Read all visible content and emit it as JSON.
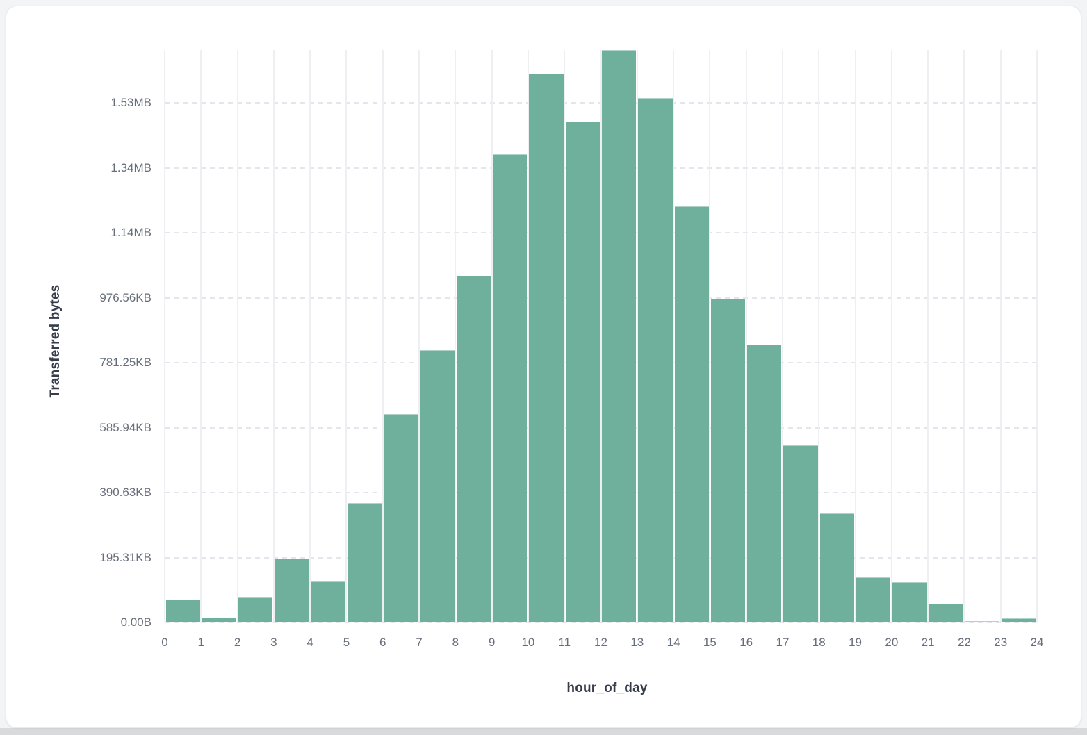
{
  "card": {
    "background": "#ffffff",
    "border_color": "#e8eaee"
  },
  "page": {
    "background": "#f3f4f6",
    "footer_strip_color": "#d8dadc"
  },
  "chart_data": {
    "type": "bar",
    "subtype": "histogram",
    "title": "",
    "xlabel": "hour_of_day",
    "ylabel": "Transferred bytes",
    "bar_color": "#6FB09D",
    "grid": true,
    "legend": "none",
    "xlim": [
      0,
      24
    ],
    "ylim": [
      0,
      1763000
    ],
    "x_bin_starts": [
      0,
      1,
      2,
      3,
      4,
      5,
      6,
      7,
      8,
      9,
      10,
      11,
      12,
      13,
      14,
      15,
      16,
      17,
      18,
      19,
      20,
      21,
      22,
      23
    ],
    "values_bytes": [
      71000,
      15000,
      77000,
      196000,
      126000,
      368000,
      642000,
      838000,
      1067000,
      1443000,
      1690000,
      1543000,
      1763000,
      1616000,
      1281000,
      997000,
      856000,
      546000,
      335000,
      140000,
      125000,
      57000,
      3500,
      12000
    ],
    "x_tick_labels": [
      "0",
      "1",
      "2",
      "3",
      "4",
      "5",
      "6",
      "7",
      "8",
      "9",
      "10",
      "11",
      "12",
      "13",
      "14",
      "15",
      "16",
      "17",
      "18",
      "19",
      "20",
      "21",
      "22",
      "23",
      "24"
    ],
    "y_ticks": [
      {
        "label": "0.00B",
        "value": 0
      },
      {
        "label": "195.31KB",
        "value": 200000
      },
      {
        "label": "390.63KB",
        "value": 400000
      },
      {
        "label": "585.94KB",
        "value": 600000
      },
      {
        "label": "781.25KB",
        "value": 800000
      },
      {
        "label": "976.56KB",
        "value": 1000000
      },
      {
        "label": "1.14MB",
        "value": 1200000
      },
      {
        "label": "1.34MB",
        "value": 1400000
      },
      {
        "label": "1.53MB",
        "value": 1600000
      }
    ],
    "colors": {
      "vertical_gridline": "#edeff3",
      "horizontal_gridline": "#e3e6ec",
      "tick_text": "#676e7b",
      "axis_title_text": "#363c4a"
    }
  }
}
